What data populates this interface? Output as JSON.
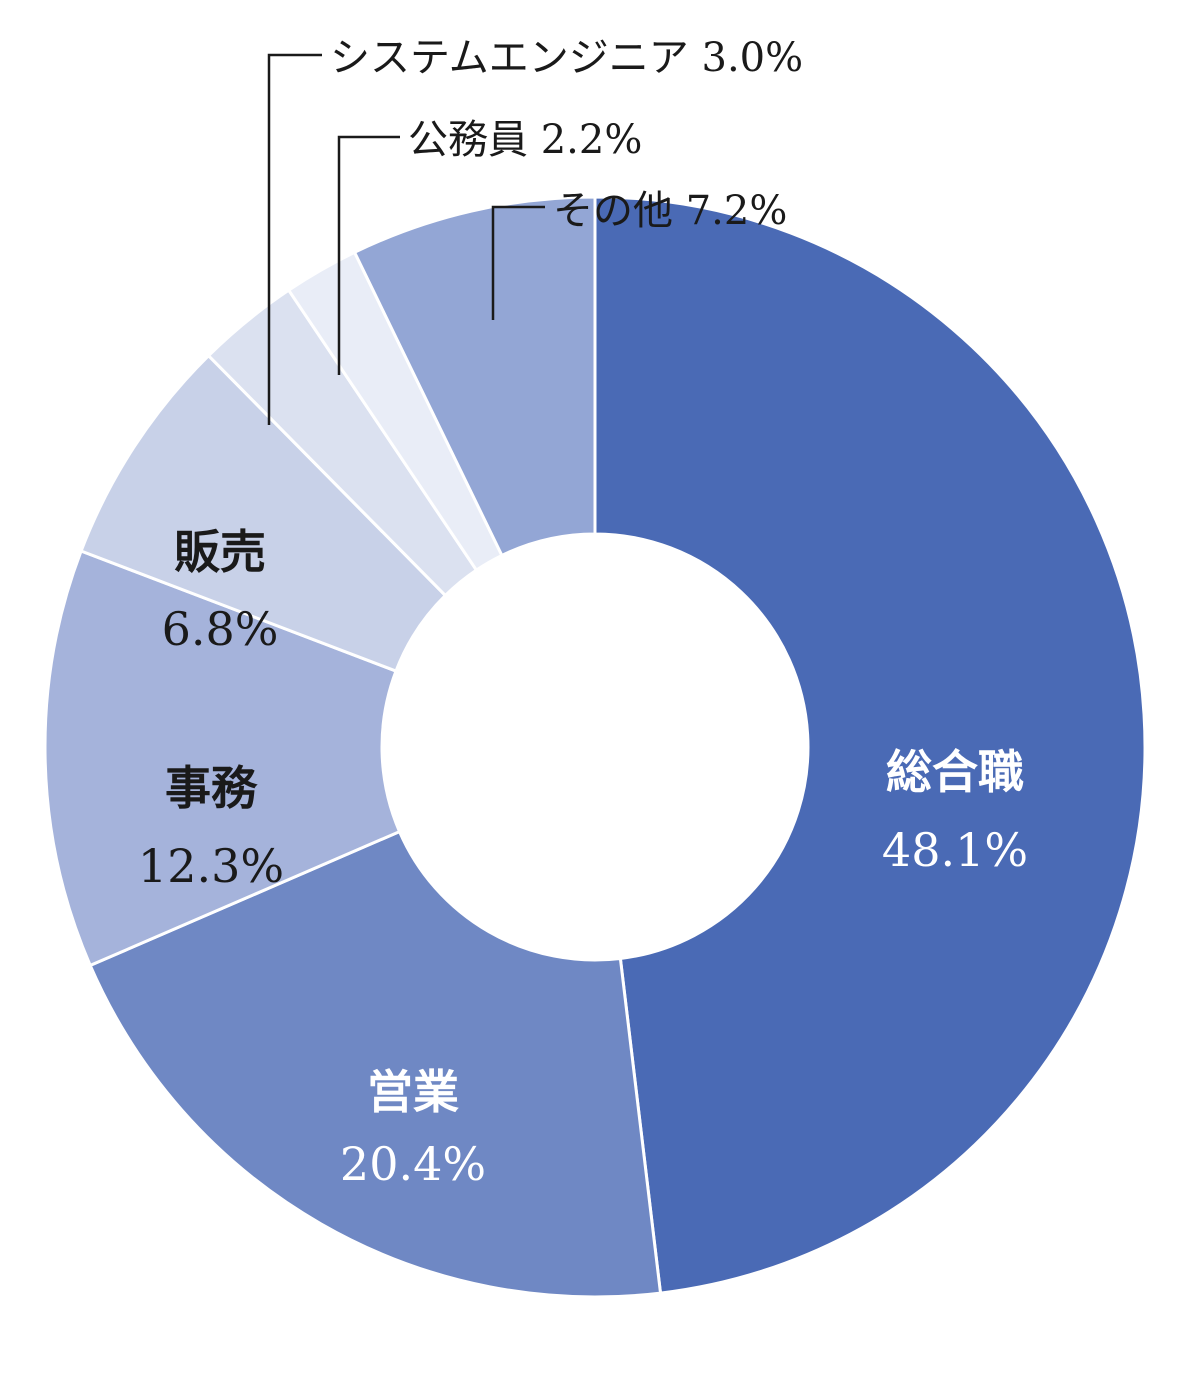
{
  "chart_data": {
    "type": "pie",
    "variant": "donut",
    "segments": [
      {
        "label": "総合職",
        "value": 48.1,
        "value_label": "48.1%",
        "color": "#4a6ab5",
        "text_color": "#ffffff"
      },
      {
        "label": "営業",
        "value": 20.4,
        "value_label": "20.4%",
        "color": "#6f88c4",
        "text_color": "#ffffff"
      },
      {
        "label": "事務",
        "value": 12.3,
        "value_label": "12.3%",
        "color": "#a5b3db",
        "text_color": "#1a1a1a"
      },
      {
        "label": "販売",
        "value": 6.8,
        "value_label": "6.8%",
        "color": "#c8d1e8",
        "text_color": "#1a1a1a"
      },
      {
        "label": "システムエンジニア",
        "value": 3.0,
        "value_label": "3.0%",
        "color": "#dbe1f0",
        "text_color": "#1a1a1a"
      },
      {
        "label": "公務員",
        "value": 2.2,
        "value_label": "2.2%",
        "color": "#e9edf7",
        "text_color": "#1a1a1a"
      },
      {
        "label": "その他",
        "value": 7.2,
        "value_label": "7.2%",
        "color": "#93a6d5",
        "text_color": "#1a1a1a"
      }
    ],
    "start_position": "12 o'clock",
    "direction": "clockwise",
    "legend": "none"
  }
}
